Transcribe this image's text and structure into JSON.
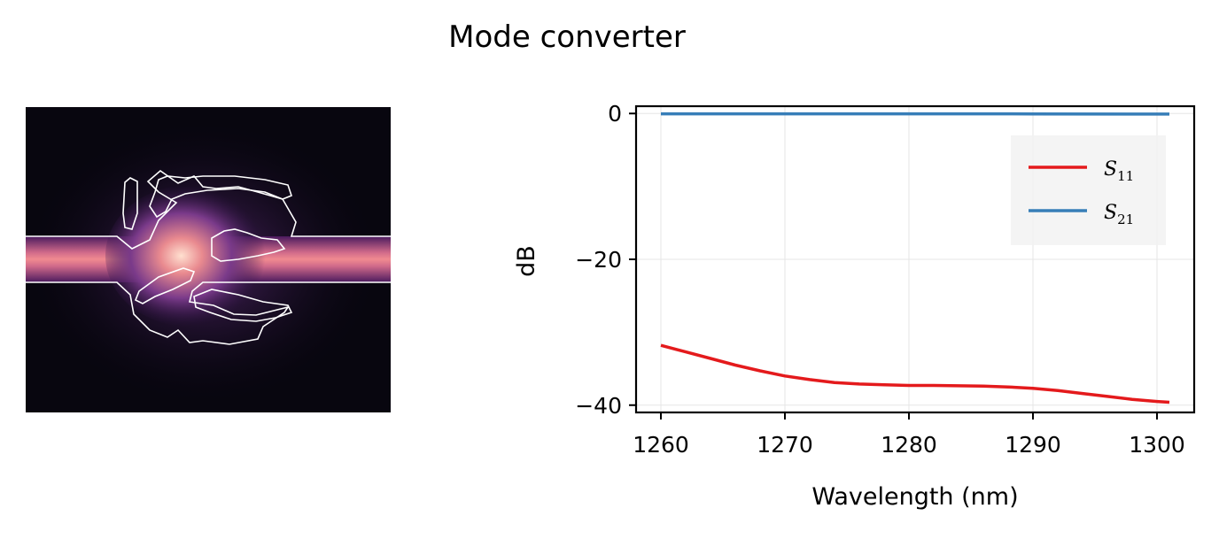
{
  "title": "Mode converter",
  "chart_data": {
    "type": "line",
    "title": "",
    "xlabel": "Wavelength (nm)",
    "ylabel": "dB",
    "xlim": [
      1258,
      1303
    ],
    "ylim": [
      -41,
      1
    ],
    "xticks": [
      1260,
      1270,
      1280,
      1290,
      1300
    ],
    "yticks": [
      0,
      -20,
      -40
    ],
    "xtick_labels": [
      "1260",
      "1270",
      "1280",
      "1290",
      "1300"
    ],
    "ytick_labels": [
      "0",
      "−20",
      "−40"
    ],
    "grid": true,
    "legend_position": "upper-right",
    "series": [
      {
        "name": "S11",
        "name_base": "S",
        "name_sub": "11",
        "color": "#e41a1c",
        "x": [
          1260,
          1262,
          1264,
          1266,
          1268,
          1270,
          1272,
          1274,
          1276,
          1278,
          1280,
          1282,
          1284,
          1286,
          1288,
          1290,
          1292,
          1294,
          1296,
          1298,
          1300,
          1301
        ],
        "y": [
          -31.8,
          -32.7,
          -33.6,
          -34.5,
          -35.3,
          -36.0,
          -36.5,
          -36.9,
          -37.1,
          -37.2,
          -37.3,
          -37.3,
          -37.35,
          -37.4,
          -37.5,
          -37.7,
          -38.0,
          -38.4,
          -38.8,
          -39.2,
          -39.5,
          -39.6
        ]
      },
      {
        "name": "S21",
        "name_base": "S",
        "name_sub": "21",
        "color": "#377eb8",
        "x": [
          1260,
          1270,
          1280,
          1290,
          1300,
          1301
        ],
        "y": [
          -0.05,
          -0.05,
          -0.05,
          -0.06,
          -0.08,
          -0.08
        ]
      }
    ]
  }
}
